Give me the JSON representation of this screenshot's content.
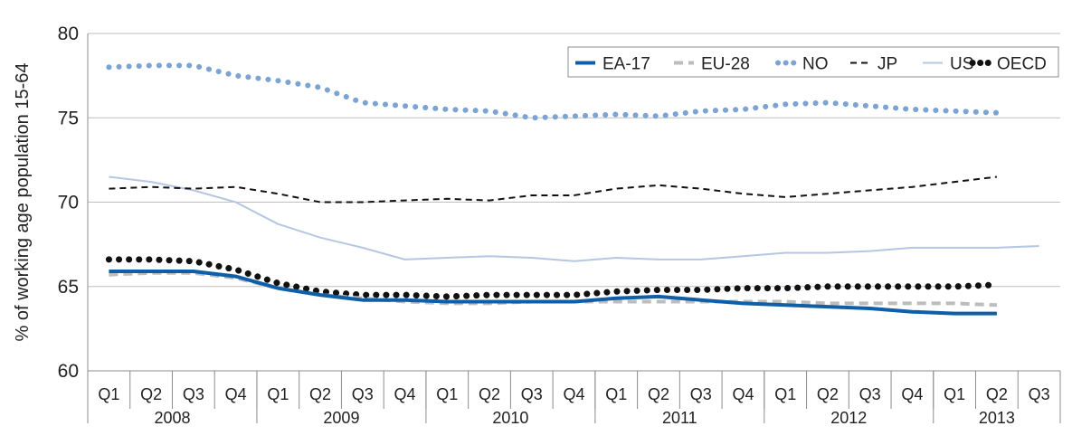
{
  "chart_data": {
    "type": "line",
    "xlabel": "",
    "ylabel": "% of working age population 15-64",
    "ylim": [
      60,
      80
    ],
    "yticks": [
      60,
      65,
      70,
      75,
      80
    ],
    "grid": "horizontal",
    "legend_position": "top-right",
    "quarters": [
      "Q1",
      "Q2",
      "Q3",
      "Q4",
      "Q1",
      "Q2",
      "Q3",
      "Q4",
      "Q1",
      "Q2",
      "Q3",
      "Q4",
      "Q1",
      "Q2",
      "Q3",
      "Q4",
      "Q1",
      "Q2",
      "Q3",
      "Q4",
      "Q1",
      "Q2",
      "Q3"
    ],
    "years": [
      {
        "label": "2008",
        "quarters": 4
      },
      {
        "label": "2009",
        "quarters": 4
      },
      {
        "label": "2010",
        "quarters": 4
      },
      {
        "label": "2011",
        "quarters": 4
      },
      {
        "label": "2012",
        "quarters": 4
      },
      {
        "label": "2013",
        "quarters": 3
      }
    ],
    "series": [
      {
        "name": "EA-17",
        "color": "#0f5fa8",
        "style": "solid-thick",
        "values": [
          65.9,
          65.9,
          65.9,
          65.6,
          64.9,
          64.5,
          64.2,
          64.2,
          64.1,
          64.1,
          64.1,
          64.1,
          64.3,
          64.4,
          64.2,
          64.0,
          63.9,
          63.8,
          63.7,
          63.5,
          63.4,
          63.4,
          null
        ]
      },
      {
        "name": "EU-28",
        "color": "#bdbdbd",
        "style": "dashed-thick",
        "values": [
          65.7,
          65.8,
          65.8,
          65.5,
          64.9,
          64.5,
          64.3,
          64.1,
          64.0,
          64.0,
          64.1,
          64.1,
          64.1,
          64.1,
          64.1,
          64.1,
          64.1,
          64.0,
          64.0,
          64.0,
          64.0,
          63.9,
          null
        ]
      },
      {
        "name": "NO",
        "color": "#7ba3d4",
        "style": "dotted",
        "values": [
          78.0,
          78.1,
          78.1,
          77.5,
          77.2,
          76.8,
          75.9,
          75.7,
          75.5,
          75.4,
          75.0,
          75.1,
          75.2,
          75.1,
          75.4,
          75.5,
          75.8,
          75.9,
          75.7,
          75.5,
          75.4,
          75.3,
          null
        ]
      },
      {
        "name": "JP",
        "color": "#111111",
        "style": "dashed",
        "values": [
          70.8,
          70.9,
          70.8,
          70.9,
          70.5,
          70.0,
          70.0,
          70.1,
          70.2,
          70.1,
          70.4,
          70.4,
          70.8,
          71.0,
          70.8,
          70.5,
          70.3,
          70.5,
          70.7,
          70.9,
          71.2,
          71.5,
          null
        ]
      },
      {
        "name": "US",
        "color": "#b5c7e3",
        "style": "solid",
        "values": [
          71.5,
          71.2,
          70.7,
          70.0,
          68.7,
          67.9,
          67.3,
          66.6,
          66.7,
          66.8,
          66.7,
          66.5,
          66.7,
          66.6,
          66.6,
          66.8,
          67.0,
          67.0,
          67.1,
          67.3,
          67.3,
          67.3,
          67.4
        ]
      },
      {
        "name": "OECD",
        "color": "#111111",
        "style": "dotted-thick",
        "values": [
          66.6,
          66.6,
          66.5,
          66.0,
          65.2,
          64.7,
          64.5,
          64.5,
          64.4,
          64.5,
          64.5,
          64.5,
          64.7,
          64.8,
          64.8,
          64.9,
          64.9,
          65.0,
          65.0,
          65.0,
          65.0,
          65.1,
          null
        ]
      }
    ]
  }
}
